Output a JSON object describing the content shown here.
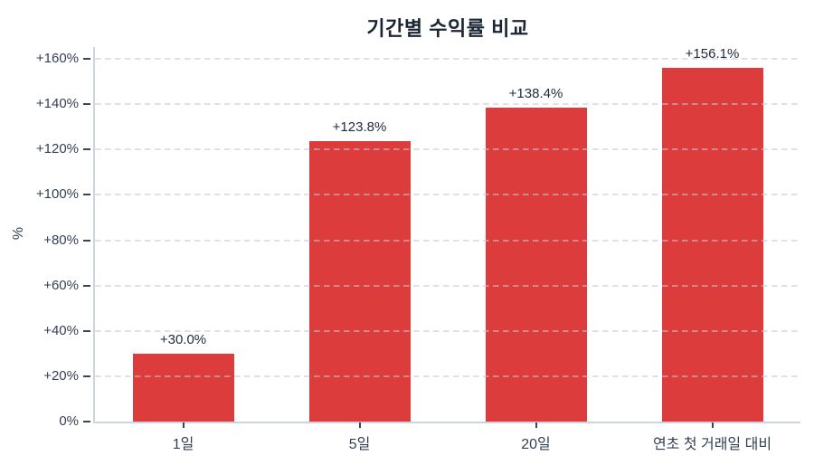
{
  "chart_data": {
    "type": "bar",
    "title": "기간별 수익률 비교",
    "xlabel": "",
    "ylabel": "%",
    "categories": [
      "1일",
      "5일",
      "20일",
      "연초 첫 거래일 대비"
    ],
    "values": [
      30.0,
      123.8,
      138.4,
      156.1
    ],
    "value_labels": [
      "+30.0%",
      "+123.8%",
      "+138.4%",
      "+156.1%"
    ],
    "yticks": [
      0,
      20,
      40,
      60,
      80,
      100,
      120,
      140,
      160
    ],
    "ytick_labels": [
      "0%",
      "+20%",
      "+40%",
      "+60%",
      "+80%",
      "+100%",
      "+120%",
      "+140%",
      "+160%"
    ],
    "ylim": [
      0,
      165
    ],
    "grid": "horizontal-dashed",
    "legend": "none",
    "bar_color": "#dc3c3c"
  },
  "colors": {
    "bar": "#dc3c3c",
    "title_text": "#1a2433",
    "tick_text": "#333f54",
    "value_text": "#222c40",
    "spine": "#ccd4e0",
    "tick_mark": "#3b4454",
    "grid": "rgba(198,198,208,0.55)",
    "background": "#ffffff"
  }
}
